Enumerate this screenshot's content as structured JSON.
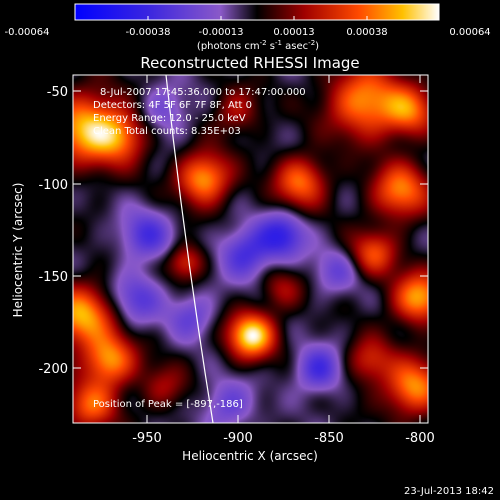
{
  "colorbar": {
    "tick_labels": [
      "-0.00064",
      "-0.00038",
      "-0.00013",
      "0.00013",
      "0.00038",
      "0.00064"
    ],
    "unit_label_parts": [
      "(photons cm",
      "-2",
      " s",
      "-1",
      " asec",
      "-2",
      ")"
    ]
  },
  "plot": {
    "title": "Reconstructed RHESSI Image",
    "xlabel": "Heliocentric X (arcsec)",
    "ylabel": "Heliocentric Y (arcsec)",
    "x_ticks": [
      "-950",
      "-900",
      "-850",
      "-800"
    ],
    "y_ticks": [
      "-50",
      "-100",
      "-150",
      "-200"
    ]
  },
  "annotations": {
    "time_range": "8-Jul-2007 17:45:36.000 to 17:47:00.000",
    "detectors": "Detectors: 4F 5F 6F 7F 8F, Att 0",
    "energy": "Energy Range: 12.0 - 25.0 keV",
    "method": "Clean     Total counts: 8.35E+03",
    "peak": "Position of Peak = [-897,-186]"
  },
  "footer": {
    "timestamp": "23-Jul-2013 18:42"
  },
  "chart_data": {
    "type": "heatmap",
    "title": "Reconstructed RHESSI Image",
    "xlabel": "Heliocentric X (arcsec)",
    "ylabel": "Heliocentric Y (arcsec)",
    "xlim": [
      -995,
      -800
    ],
    "ylim": [
      -235,
      -40
    ],
    "colorbar_range": [
      -0.00064,
      0.00064
    ],
    "peak": [
      -897,
      -186
    ],
    "blobs": [
      {
        "x": -897,
        "y": -186,
        "w": 1.0,
        "r": 9
      },
      {
        "x": -923,
        "y": -98,
        "w": 0.8,
        "r": 10
      },
      {
        "x": -987,
        "y": -70,
        "w": 0.85,
        "r": 14
      },
      {
        "x": -968,
        "y": -75,
        "w": 0.5,
        "r": 10
      },
      {
        "x": -990,
        "y": -175,
        "w": 0.8,
        "r": 12
      },
      {
        "x": -975,
        "y": -200,
        "w": 0.75,
        "r": 10
      },
      {
        "x": -985,
        "y": -225,
        "w": 0.6,
        "r": 10
      },
      {
        "x": -835,
        "y": -55,
        "w": 0.75,
        "r": 14
      },
      {
        "x": -810,
        "y": -60,
        "w": 0.6,
        "r": 10
      },
      {
        "x": -870,
        "y": -100,
        "w": 0.65,
        "r": 10
      },
      {
        "x": -815,
        "y": -105,
        "w": 0.7,
        "r": 11
      },
      {
        "x": -830,
        "y": -140,
        "w": 0.55,
        "r": 9
      },
      {
        "x": -805,
        "y": -165,
        "w": 0.8,
        "r": 10
      },
      {
        "x": -808,
        "y": -215,
        "w": 0.75,
        "r": 11
      },
      {
        "x": -832,
        "y": -200,
        "w": 0.45,
        "r": 9
      },
      {
        "x": -933,
        "y": -145,
        "w": 0.5,
        "r": 7
      },
      {
        "x": -905,
        "y": -60,
        "w": 0.35,
        "r": 9
      },
      {
        "x": -945,
        "y": -215,
        "w": 0.3,
        "r": 9
      },
      {
        "x": -880,
        "y": -160,
        "w": 0.3,
        "r": 8
      },
      {
        "x": -900,
        "y": -140,
        "w": -0.5,
        "r": 10
      },
      {
        "x": -880,
        "y": -130,
        "w": -0.55,
        "r": 9
      },
      {
        "x": -955,
        "y": -130,
        "w": -0.45,
        "r": 10
      },
      {
        "x": -960,
        "y": -165,
        "w": -0.4,
        "r": 10
      },
      {
        "x": -860,
        "y": -205,
        "w": -0.5,
        "r": 9
      },
      {
        "x": -930,
        "y": -175,
        "w": -0.35,
        "r": 9
      },
      {
        "x": -910,
        "y": -225,
        "w": -0.35,
        "r": 10
      },
      {
        "x": -850,
        "y": -150,
        "w": -0.3,
        "r": 9
      },
      {
        "x": -945,
        "y": -60,
        "w": -0.3,
        "r": 10
      }
    ]
  }
}
